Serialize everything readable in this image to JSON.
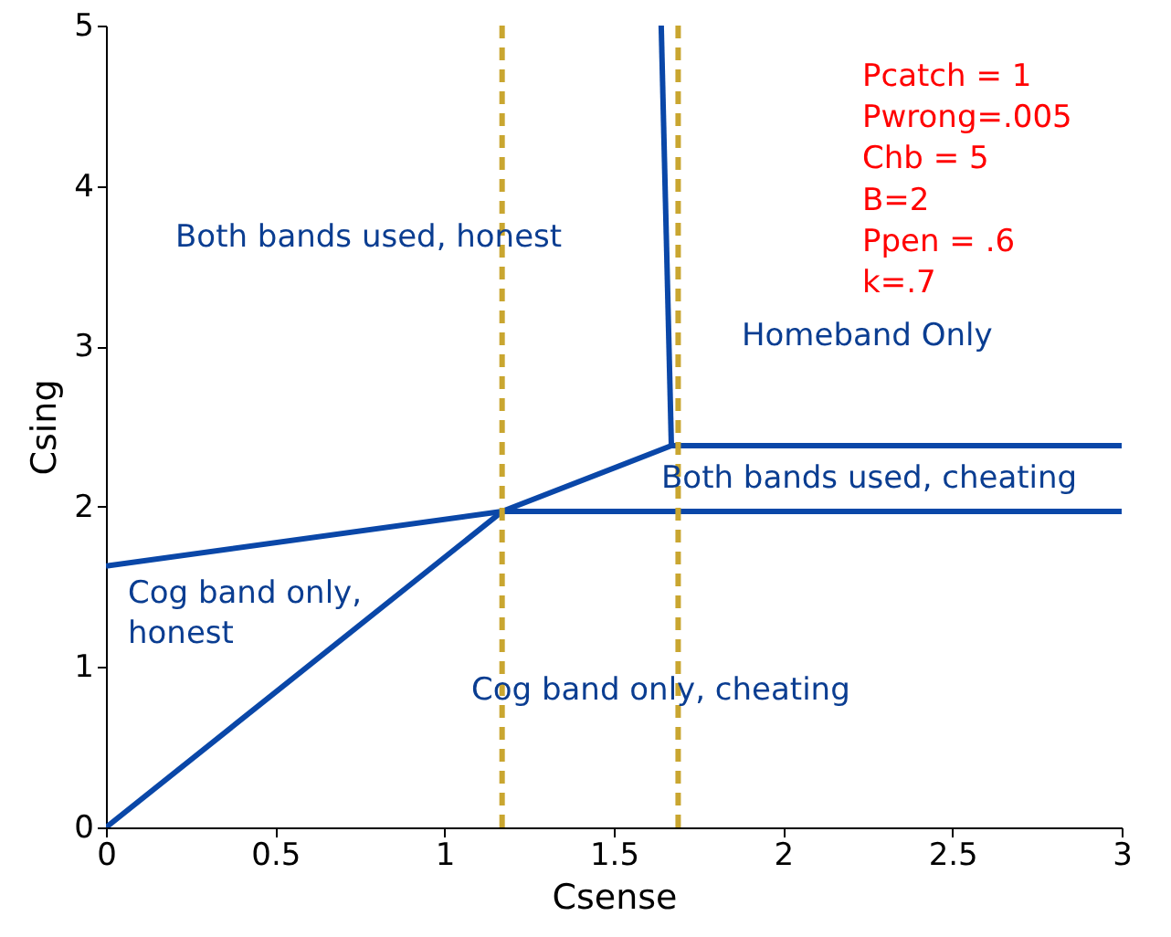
{
  "chart_data": {
    "type": "line",
    "xlabel": "Csense",
    "ylabel": "Csing",
    "xlim": [
      0,
      3
    ],
    "ylim": [
      0,
      5
    ],
    "xticks": [
      0,
      0.5,
      1,
      1.5,
      2,
      2.5,
      3
    ],
    "yticks": [
      0,
      1,
      2,
      3,
      4,
      5
    ],
    "grid": false,
    "marker": "none",
    "line_style": "solid",
    "series": [
      {
        "color": "#0a47a8",
        "x": [
          0,
          1.17,
          3
        ],
        "values": [
          0,
          1.97,
          1.97
        ]
      },
      {
        "color": "#0a47a8",
        "x": [
          0,
          1.17,
          1.67,
          3
        ],
        "values": [
          1.63,
          1.97,
          2.38,
          2.38
        ]
      },
      {
        "color": "#0a47a8",
        "x": [
          1.67,
          1.64
        ],
        "values": [
          2.38,
          5
        ]
      }
    ],
    "ref_lines": [
      {
        "axis": "x",
        "value": 1.17,
        "color": "#c9a630",
        "line_style": "dashed"
      },
      {
        "axis": "x",
        "value": 1.69,
        "color": "#c9a630",
        "line_style": "dashed"
      }
    ],
    "annotations": [
      "Both bands used, honest",
      "Homeband Only",
      "Both bands used, cheating",
      "Cog band only,\nhonest",
      "Cog band only, cheating",
      "Pcatch = 1",
      "Pwrong=.005",
      "Chb = 5",
      "B=2",
      "Ppen = .6",
      "k=.7"
    ]
  }
}
